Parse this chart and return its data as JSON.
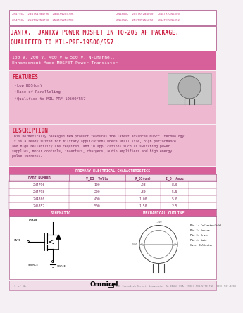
{
  "bg_color": "#f5f0f3",
  "pink_bg": "#d8609a",
  "light_pink_bg": "#edb8d0",
  "border_color": "#b06090",
  "title_text": "JANTX,  JANTXV POWER MOSFET IN TO-205 AF PACKAGE,\nQUALIFIED TO MIL-PRF-19500/557",
  "subtitle_text": "100 V, 200 V, 400 V & 500 V, N-Channel,\nEnhancement Mode MOSFET Power Transistor",
  "header_line1_left": "2N4796,  2N4TXV2N4796  2N4TXV2N4796",
  "header_line1_right": "2N4800,  2N4TXV2N4800,  2N4TXV2N5800",
  "header_line2_left": "2N4798,  2N4TXV2N4798  2N4TXV2N4798",
  "header_line2_right": "2N5852,  2N4TXV2N5852,  2N4TXV2N5852",
  "features_title": "FEATURES",
  "features": [
    "Low RDS(on)",
    "Ease of Paralleling",
    "Qualified to MIL-PRF-19500/557"
  ],
  "description_title": "DESCRIPTION",
  "description_text": "This hermetically packaged NPN product features the latest advanced MOSFET technology. It is already suited for military applications where small size, high performance and high reliability are required, and in applications such as switching power supplies, motor controls, inverters, chargers, audio amplifiers and high energy pulse currents.",
  "table_headers": [
    "PART NUMBER",
    "V_DS  Volts",
    "R_DS(on)",
    "I_D  Amps"
  ],
  "table_rows": [
    [
      "2N4796",
      "100",
      ".28",
      "8.0"
    ],
    [
      "2N4798",
      "200",
      ".80",
      "5.5"
    ],
    [
      "2N4800",
      "400",
      "1.00",
      "5.0"
    ],
    [
      "2N5852",
      "500",
      "1.50",
      "2.5"
    ]
  ],
  "schematic_title": "SCHEMATIC",
  "mechanical_title": "MECHANICAL OUTLINE",
  "footer_text": "Omnirel",
  "footer_address": "200 Cavendish Street, Leominster MA 01453 USA  (508) 534-5770 FAX (508) 537-4288",
  "primary_electrical": "PRIMARY ELECTRICAL CHARACTERISTICS",
  "text_color_pink": "#cc4488",
  "text_color_dark": "#7a3060",
  "text_color_red": "#cc2244",
  "footer_bg": "#f0dde8",
  "page_num": "1 of 4c"
}
